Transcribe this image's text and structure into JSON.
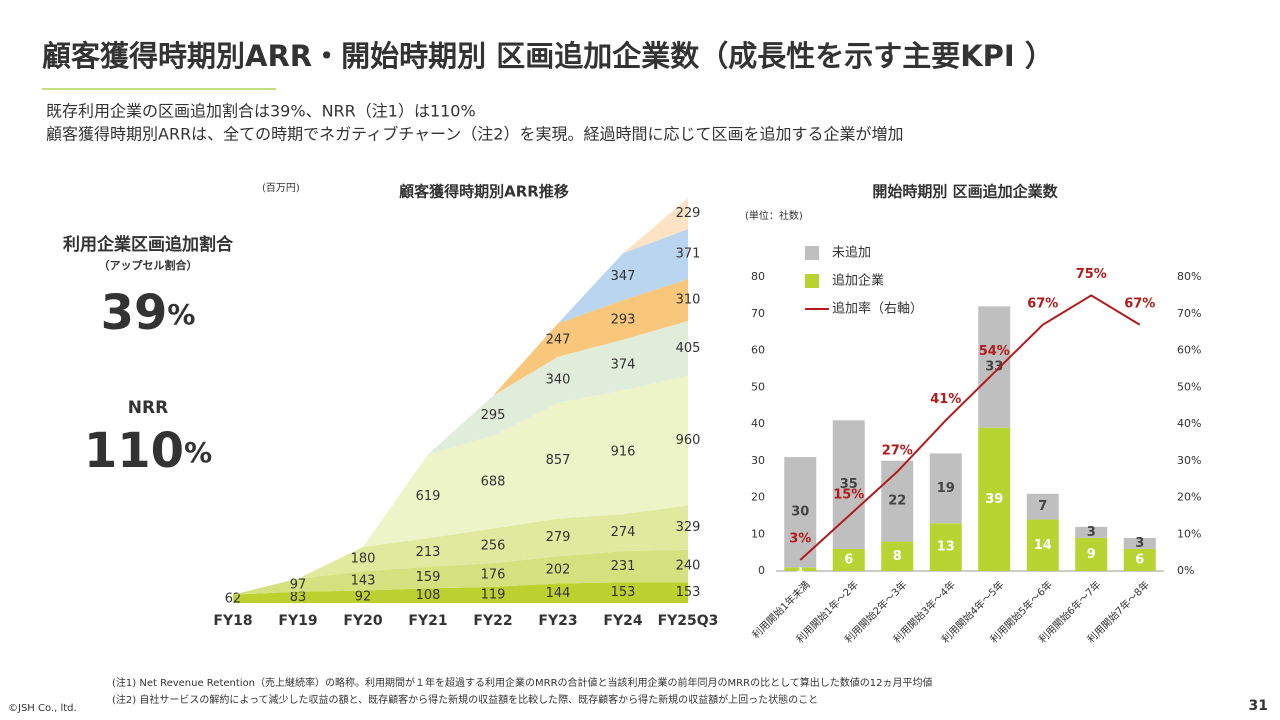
{
  "title": "顧客獲得時期別ARR・開始時期別 区画追加企業数（成長性を示す主要KPI ）",
  "subtitle": [
    "既存利用企業の区画追加割合は39%、NRR（注1）は110%",
    "顧客獲得時期別ARRは、全ての時期でネガティブチャーン（注2）を実現。経過時間に応じて区画を追加する企業が増加"
  ],
  "kpis": [
    {
      "label": "利用企業区画追加割合",
      "sublabel": "（アップセル割合）",
      "value": "39",
      "unit": "%"
    },
    {
      "label": "NRR",
      "value": "110",
      "unit": "%"
    }
  ],
  "chart_data": [
    {
      "type": "stacked_area",
      "title": "顧客獲得時期別ARR推移",
      "unit": "(百万円)",
      "categories": [
        "FY18",
        "FY19",
        "FY20",
        "FY21",
        "FY22",
        "FY23",
        "FY24",
        "FY25Q3"
      ],
      "series": [
        {
          "color": "#bcd02f",
          "values": [
            62,
            83,
            92,
            108,
            119,
            144,
            153,
            153
          ]
        },
        {
          "color": "#d3e27f",
          "values": [
            null,
            97,
            143,
            159,
            176,
            202,
            231,
            240
          ]
        },
        {
          "color": "#dfea9f",
          "values": [
            null,
            null,
            180,
            213,
            256,
            279,
            274,
            329
          ]
        },
        {
          "color": "#edf4c8",
          "values": [
            null,
            null,
            null,
            619,
            688,
            857,
            916,
            960
          ]
        },
        {
          "color": "#e1eddb",
          "values": [
            null,
            null,
            null,
            null,
            295,
            340,
            374,
            405
          ]
        },
        {
          "color": "#f9c77c",
          "values": [
            null,
            null,
            null,
            null,
            null,
            247,
            293,
            310
          ]
        },
        {
          "color": "#bad5ef",
          "values": [
            null,
            null,
            null,
            null,
            null,
            null,
            347,
            371
          ]
        },
        {
          "color": "#fde3c3",
          "values": [
            null,
            null,
            null,
            null,
            null,
            null,
            null,
            229
          ]
        }
      ]
    },
    {
      "type": "bar_line",
      "title": "開始時期別 区画追加企業数",
      "unit": "(単位：社数)",
      "categories": [
        "利用開始1年未満",
        "利用開始1年～2年",
        "利用開始2年～3年",
        "利用開始3年～4年",
        "利用開始4年～5年",
        "利用開始5年～6年",
        "利用開始6年～7年",
        "利用開始7年～8年"
      ],
      "series": [
        {
          "name": "未追加",
          "color": "#bfbfbf",
          "type": "bar",
          "values": [
            30,
            35,
            22,
            19,
            33,
            7,
            3,
            3
          ]
        },
        {
          "name": "追加企業",
          "color": "#b7d433",
          "type": "bar",
          "values": [
            1,
            6,
            8,
            13,
            39,
            14,
            9,
            6
          ]
        },
        {
          "name": "追加率（右軸）",
          "color": "#b31a1a",
          "type": "line",
          "axis": "y2",
          "values": [
            3,
            15,
            27,
            41,
            54,
            67,
            75,
            67
          ],
          "value_labels": [
            "3%",
            "15%",
            "27%",
            "41%",
            "54%",
            "67%",
            "75%",
            "67%"
          ]
        }
      ],
      "ylim": [
        0,
        80
      ],
      "yticks": [
        0,
        10,
        20,
        30,
        40,
        50,
        60,
        70,
        80
      ],
      "y2lim": [
        0,
        80
      ],
      "y2ticks": [
        {
          "value": 0,
          "label": "0%"
        },
        {
          "value": 10,
          "label": "10%"
        },
        {
          "value": 20,
          "label": "20%"
        },
        {
          "value": 30,
          "label": "30%"
        },
        {
          "value": 40,
          "label": "40%"
        },
        {
          "value": 50,
          "label": "50%"
        },
        {
          "value": 60,
          "label": "60%"
        },
        {
          "value": 70,
          "label": "70%"
        },
        {
          "value": 80,
          "label": "80%"
        }
      ],
      "legend": "top-left"
    }
  ],
  "footnotes": [
    "(注1) Net Revenue Retention（売上継続率）の略称。利用期間が１年を超過する利用企業のMRRの合計値と当該利用企業の前年同月のMRRの比として算出した数値の12ヵ月平均値",
    "(注2) 自社サービスの解約によって減少した収益の額と、既存顧客から得た新規の収益額を比較した際、既存顧客から得た新規の収益額が上回った状態のこと"
  ],
  "copyright": "©JSH Co., ltd.",
  "page_number": "31"
}
